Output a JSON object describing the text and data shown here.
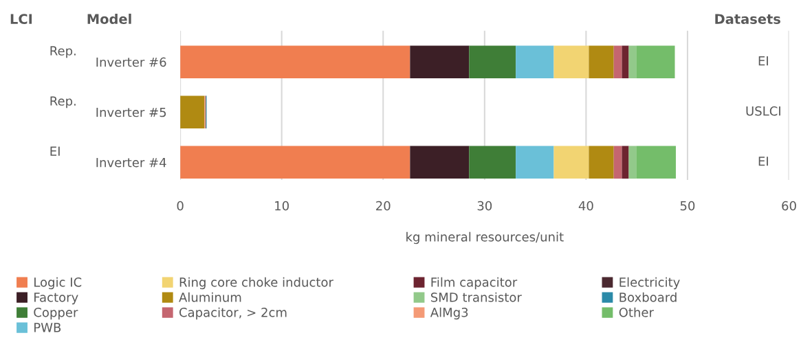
{
  "chart_data": {
    "type": "bar",
    "orientation": "horizontal",
    "stacked": true,
    "ylabel": "Model",
    "xlabel": "kg mineral resources/unit",
    "annotations": [
      "LCI",
      "Rep.",
      "Rep.",
      "EI",
      "Datasets",
      "EI",
      "USLCI",
      "EI"
    ],
    "categories": [
      "Inverter #6",
      "Inverter #5",
      "Inverter #4"
    ],
    "xlim": [
      0,
      60
    ],
    "xticks": [
      0,
      10,
      20,
      30,
      40,
      50,
      60
    ],
    "grid": "x",
    "legend": "bottom",
    "series": [
      {
        "name": "Logic IC",
        "color": "#f07e50",
        "values": [
          22.65,
          0,
          22.65
        ]
      },
      {
        "name": "Factory",
        "color": "#3c1f26",
        "values": [
          5.82,
          0,
          5.82
        ]
      },
      {
        "name": "Copper",
        "color": "#3f7e37",
        "values": [
          4.6,
          0,
          4.6
        ]
      },
      {
        "name": "PWB",
        "color": "#6ac0d8",
        "values": [
          3.75,
          0,
          3.75
        ]
      },
      {
        "name": "Ring core choke inductor",
        "color": "#f2d472",
        "values": [
          3.45,
          0,
          3.45
        ]
      },
      {
        "name": "Aluminum",
        "color": "#b08a12",
        "values": [
          2.46,
          2.39,
          2.46
        ]
      },
      {
        "name": "Capacitor, > 2cm",
        "color": "#c56670",
        "values": [
          0.8,
          0,
          0.8
        ]
      },
      {
        "name": "Film capacitor",
        "color": "#6d2430",
        "values": [
          0.68,
          0,
          0.68
        ]
      },
      {
        "name": "SMD transistor",
        "color": "#92c98a",
        "values": [
          0.73,
          0,
          0.73
        ]
      },
      {
        "name": "AlMg3",
        "color": "#f49a76",
        "values": [
          0,
          0.1,
          0
        ]
      },
      {
        "name": "Electricity",
        "color": "#4b2930",
        "values": [
          0,
          0.05,
          0
        ]
      },
      {
        "name": "Boxboard",
        "color": "#2b8aa8",
        "values": [
          0,
          0.06,
          0
        ]
      },
      {
        "name": "Other",
        "color": "#74bd6a",
        "values": [
          3.81,
          0,
          3.91
        ]
      }
    ]
  }
}
